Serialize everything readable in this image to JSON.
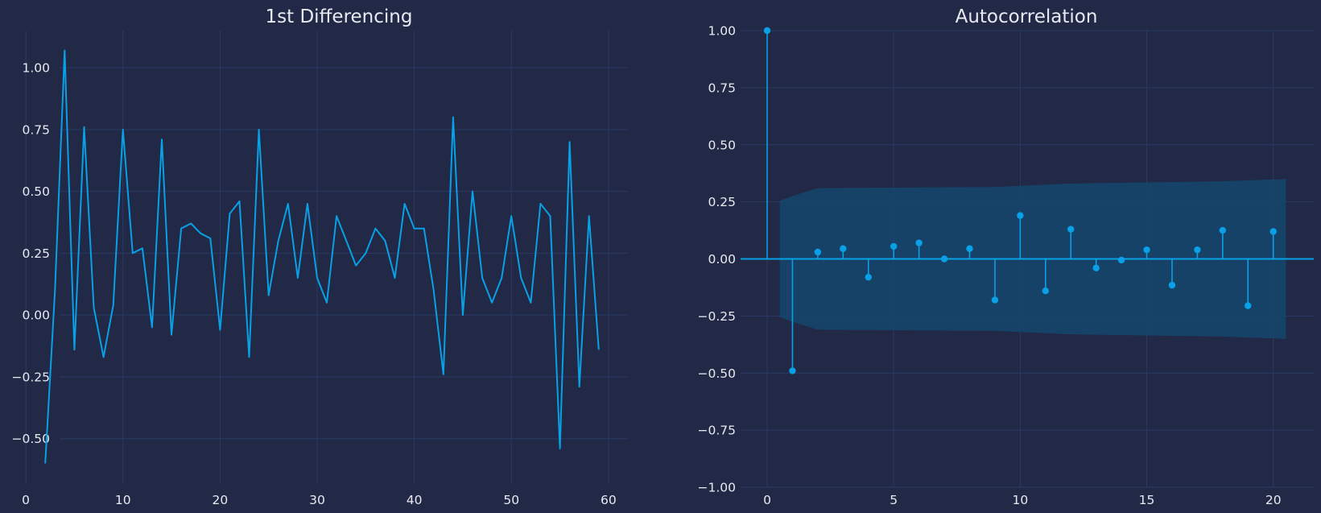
{
  "colors": {
    "background": "#212946",
    "grid": "#2a3a64",
    "text": "#e8eaf2",
    "series": "#08a0e6",
    "confidence_band": "#15466f"
  },
  "chart_data": [
    {
      "type": "line",
      "title": "1st Differencing",
      "xlabel": "",
      "ylabel": "",
      "grid": true,
      "xlim": [
        -1.5,
        62
      ],
      "ylim": [
        -0.68,
        1.15
      ],
      "xticks": [
        0,
        10,
        20,
        30,
        40,
        50,
        60
      ],
      "yticks": [
        -0.5,
        -0.25,
        0.0,
        0.25,
        0.5,
        0.75,
        1.0
      ],
      "xtick_labels": [
        "0",
        "10",
        "20",
        "30",
        "40",
        "50",
        "60"
      ],
      "ytick_labels": [
        "−0.50",
        "−0.25",
        "0.00",
        "0.25",
        "0.50",
        "0.75",
        "1.00"
      ],
      "x": [
        2,
        3,
        4,
        5,
        6,
        7,
        8,
        9,
        10,
        11,
        12,
        13,
        14,
        15,
        16,
        17,
        18,
        19,
        20,
        21,
        22,
        23,
        24,
        25,
        26,
        27,
        28,
        29,
        30,
        31,
        32,
        33,
        34,
        35,
        36,
        37,
        38,
        39,
        40,
        41,
        42,
        43,
        44,
        45,
        46,
        47,
        48,
        49,
        50,
        51,
        52,
        53,
        54,
        55,
        56,
        57,
        58,
        59
      ],
      "y": [
        -0.6,
        0.1,
        1.07,
        -0.14,
        0.76,
        0.03,
        -0.17,
        0.04,
        0.75,
        0.25,
        0.27,
        -0.05,
        0.71,
        -0.08,
        0.35,
        0.37,
        0.33,
        0.31,
        -0.06,
        0.41,
        0.46,
        -0.17,
        0.75,
        0.08,
        0.3,
        0.45,
        0.15,
        0.45,
        0.15,
        0.05,
        0.4,
        0.3,
        0.2,
        0.25,
        0.35,
        0.3,
        0.15,
        0.45,
        0.35,
        0.35,
        0.1,
        -0.24,
        0.8,
        0.0,
        0.5,
        0.15,
        0.05,
        0.15,
        0.4,
        0.15,
        0.05,
        0.45,
        0.4,
        -0.54,
        0.7,
        -0.29,
        0.4,
        -0.14
      ]
    },
    {
      "type": "stem",
      "title": "Autocorrelation",
      "xlabel": "",
      "ylabel": "",
      "grid": true,
      "xlim": [
        -1.05,
        21.6
      ],
      "ylim": [
        -1.0,
        1.0
      ],
      "xticks": [
        0,
        5,
        10,
        15,
        20
      ],
      "yticks": [
        -1.0,
        -0.75,
        -0.5,
        -0.25,
        0.0,
        0.25,
        0.5,
        0.75,
        1.0
      ],
      "xtick_labels": [
        "0",
        "5",
        "10",
        "15",
        "20"
      ],
      "ytick_labels": [
        "−1.00",
        "−0.75",
        "−0.50",
        "−0.25",
        "0.00",
        "0.25",
        "0.50",
        "0.75",
        "1.00"
      ],
      "lags": [
        0,
        1,
        2,
        3,
        4,
        5,
        6,
        7,
        8,
        9,
        10,
        11,
        12,
        13,
        14,
        15,
        16,
        17,
        18,
        19,
        20
      ],
      "values": [
        1.0,
        -0.49,
        0.03,
        0.045,
        -0.08,
        0.055,
        0.07,
        0.0,
        0.045,
        -0.18,
        0.19,
        -0.14,
        0.13,
        -0.04,
        -0.005,
        0.04,
        -0.115,
        0.04,
        0.125,
        -0.205,
        0.12
      ],
      "confidence_band": {
        "lags": [
          0.5,
          1,
          2,
          9,
          12,
          18,
          20.5
        ],
        "upper": [
          0.255,
          0.275,
          0.31,
          0.315,
          0.33,
          0.34,
          0.35
        ]
      }
    }
  ]
}
